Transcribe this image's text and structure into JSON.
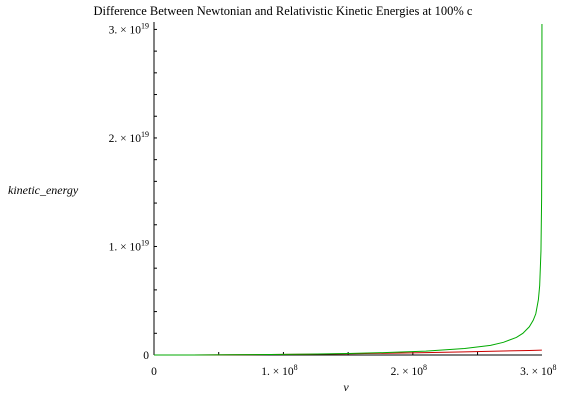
{
  "chart_data": {
    "type": "line",
    "title": "Difference Between Newtonian and Relativistic Kinetic Energies at 100% c",
    "xlabel": "v",
    "ylabel": "kinetic_energy",
    "xlim": [
      0,
      299792458
    ],
    "ylim": [
      0,
      3.05e+19
    ],
    "grid": false,
    "legend": "none",
    "x_ticks": [
      {
        "value": 0,
        "mantissa": "0",
        "exp": ""
      },
      {
        "value": 100000000.0,
        "mantissa": "1. × 10",
        "exp": "8"
      },
      {
        "value": 200000000.0,
        "mantissa": "2. × 10",
        "exp": "8"
      },
      {
        "value": 300000000.0,
        "mantissa": "3. × 10",
        "exp": "8"
      }
    ],
    "y_ticks": [
      {
        "value": 0,
        "mantissa": "0",
        "exp": ""
      },
      {
        "value": 1e+19,
        "mantissa": "1. × 10",
        "exp": "19"
      },
      {
        "value": 2e+19,
        "mantissa": "2. × 10",
        "exp": "19"
      },
      {
        "value": 3e+19,
        "mantissa": "3. × 10",
        "exp": "19"
      }
    ],
    "series": [
      {
        "color": "#cc0000",
        "x": [
          0,
          30000000.0,
          60000000.0,
          90000000.0,
          120000000.0,
          150000000.0,
          180000000.0,
          210000000.0,
          240000000.0,
          270000000.0,
          290000000.0,
          299700000.0
        ],
        "y": [
          0,
          4500000000000000.0,
          1.8e+16,
          4.05e+16,
          7.2e+16,
          1.125e+17,
          1.62e+17,
          2.205e+17,
          2.88e+17,
          3.645e+17,
          4.205e+17,
          4.49e+17
        ]
      },
      {
        "color": "#00aa00",
        "x": [
          0,
          30000000.0,
          60000000.0,
          90000000.0,
          120000000.0,
          150000000.0,
          180000000.0,
          210000000.0,
          240000000.0,
          260000000.0,
          270000000.0,
          280000000.0,
          285000000.0,
          290000000.0,
          293000000.0,
          295000000.0,
          297000000.0,
          298000000.0,
          299000000.0,
          299500000.0,
          299700000.0,
          299750000.0
        ],
        "y": [
          0,
          4500000000000000.0,
          1.9e+16,
          4.4e+16,
          8.2e+16,
          1.39e+17,
          2.25e+17,
          3.6e+17,
          6e+17,
          8.9e+17,
          1.17e+18,
          1.62e+18,
          2e+18,
          2.6e+18,
          3.2e+18,
          3.8e+18,
          5.1e+18,
          6.4e+18,
          9.6e+18,
          1.45e+19,
          2.2e+19,
          3.05e+19
        ]
      }
    ]
  }
}
